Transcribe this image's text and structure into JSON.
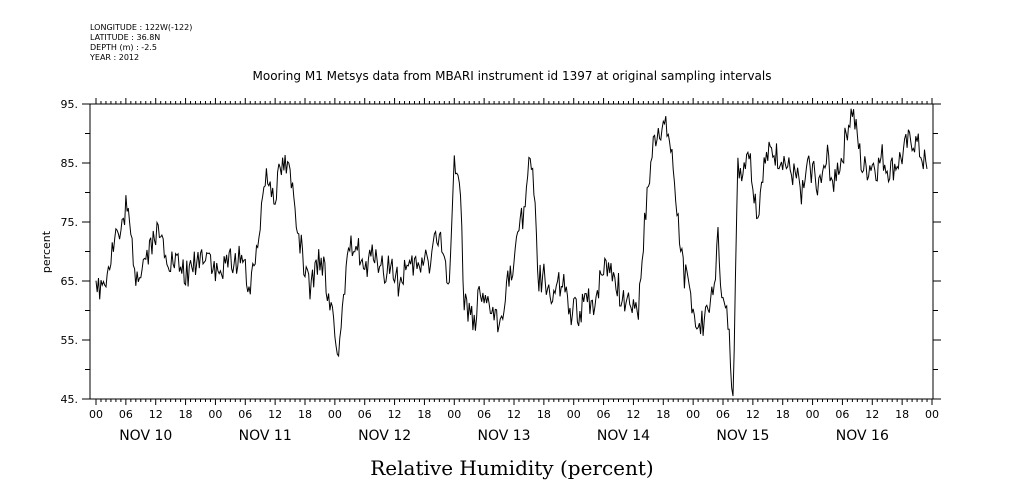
{
  "meta": {
    "longitude": "LONGITUDE : 122W(-122)",
    "latitude": "LATITUDE : 36.8N",
    "depth": "DEPTH (m) : -2.5",
    "year": "YEAR : 2012"
  },
  "chart_data": {
    "type": "line",
    "title": "Mooring M1 Metsys data from MBARI instrument id 1397 at original sampling intervals",
    "xlabel": "Relative Humidity (percent)",
    "ylabel": "percent",
    "ylim": [
      45,
      95
    ],
    "yticks": [
      45,
      55,
      65,
      75,
      85,
      95
    ],
    "ytick_labels": [
      "45.",
      "55.",
      "65.",
      "75.",
      "85.",
      "95."
    ],
    "xlim_hours": [
      0,
      168
    ],
    "hour_tick_labels": [
      "00",
      "06",
      "12",
      "18",
      "00",
      "06",
      "12",
      "18",
      "00",
      "06",
      "12",
      "18",
      "00",
      "06",
      "12",
      "18",
      "00",
      "06",
      "12",
      "18",
      "00",
      "06",
      "12",
      "18",
      "00",
      "06",
      "12",
      "18",
      "00"
    ],
    "day_labels": [
      "NOV 10",
      "NOV 11",
      "NOV 12",
      "NOV 13",
      "NOV 14",
      "NOV 15",
      "NOV 16"
    ],
    "grid": false,
    "series": [
      {
        "x_hours": [
          0,
          1,
          2,
          3,
          4,
          5,
          6,
          7,
          8,
          9,
          10,
          11,
          12,
          13,
          14,
          15,
          16,
          17,
          18,
          19,
          20,
          21,
          22,
          23,
          24,
          25,
          26,
          27,
          28,
          29,
          30,
          31,
          32,
          33,
          34,
          35,
          36,
          37,
          38,
          39,
          40,
          41,
          42,
          43,
          44,
          45,
          46,
          47,
          48,
          49,
          50,
          51,
          52,
          53,
          54,
          55,
          56,
          57,
          58,
          59,
          60,
          61,
          62,
          63,
          64,
          65,
          66,
          67,
          68,
          69,
          70,
          71,
          72,
          73,
          74,
          75,
          76,
          77,
          78,
          79,
          80,
          81,
          82,
          83,
          84,
          85,
          86,
          87,
          88,
          89,
          90,
          91,
          92,
          93,
          94,
          95,
          96,
          97,
          98,
          99,
          100,
          101,
          102,
          103,
          104,
          105,
          106,
          107,
          108,
          109,
          110,
          111,
          112,
          113,
          114,
          115,
          116,
          117,
          118,
          119,
          120,
          121,
          122,
          123,
          124,
          125,
          126,
          127,
          128,
          129,
          130,
          131,
          132,
          133,
          134,
          135,
          136,
          137,
          138,
          139,
          140,
          141,
          142,
          143,
          144,
          145,
          146,
          147,
          148,
          149,
          150,
          151,
          152,
          153,
          154,
          155,
          156,
          157,
          158,
          159,
          160,
          161,
          162,
          163,
          164,
          165,
          166,
          167
        ],
        "values": [
          63,
          64,
          66,
          69,
          73,
          72,
          78,
          72,
          66,
          67,
          69,
          71,
          73,
          72,
          70,
          68,
          68,
          67,
          66,
          67,
          68,
          69,
          70,
          69,
          66,
          66,
          67,
          69,
          68,
          70,
          67,
          63,
          68,
          76,
          83,
          82,
          80,
          84,
          85,
          83,
          78,
          72,
          66,
          63,
          66,
          69,
          66,
          62,
          57,
          53,
          64,
          70,
          72,
          70,
          66,
          68,
          70,
          68,
          66,
          68,
          66,
          64,
          67,
          66,
          68,
          66,
          70,
          68,
          72,
          72,
          68,
          66,
          84,
          84,
          62,
          60,
          58,
          62,
          60,
          61,
          59,
          57,
          62,
          66,
          66,
          76,
          76,
          86,
          82,
          65,
          66,
          63,
          62,
          65,
          64,
          60,
          60,
          59,
          61,
          62,
          61,
          64,
          67,
          68,
          66,
          64,
          61,
          62,
          62,
          60,
          72,
          81,
          88,
          91,
          91,
          90,
          84,
          75,
          67,
          64,
          61,
          56,
          58,
          62,
          62,
          72,
          61,
          58,
          46,
          84,
          84,
          88,
          82,
          76,
          84,
          86,
          87,
          86,
          86,
          84,
          83,
          82,
          80,
          84,
          84,
          82,
          82,
          86,
          82,
          84,
          86,
          91,
          94,
          89,
          84,
          84,
          85,
          84,
          86,
          84,
          84,
          85,
          86,
          88,
          89,
          88,
          86,
          84
        ],
        "samples_per_hour": 4
      }
    ]
  }
}
